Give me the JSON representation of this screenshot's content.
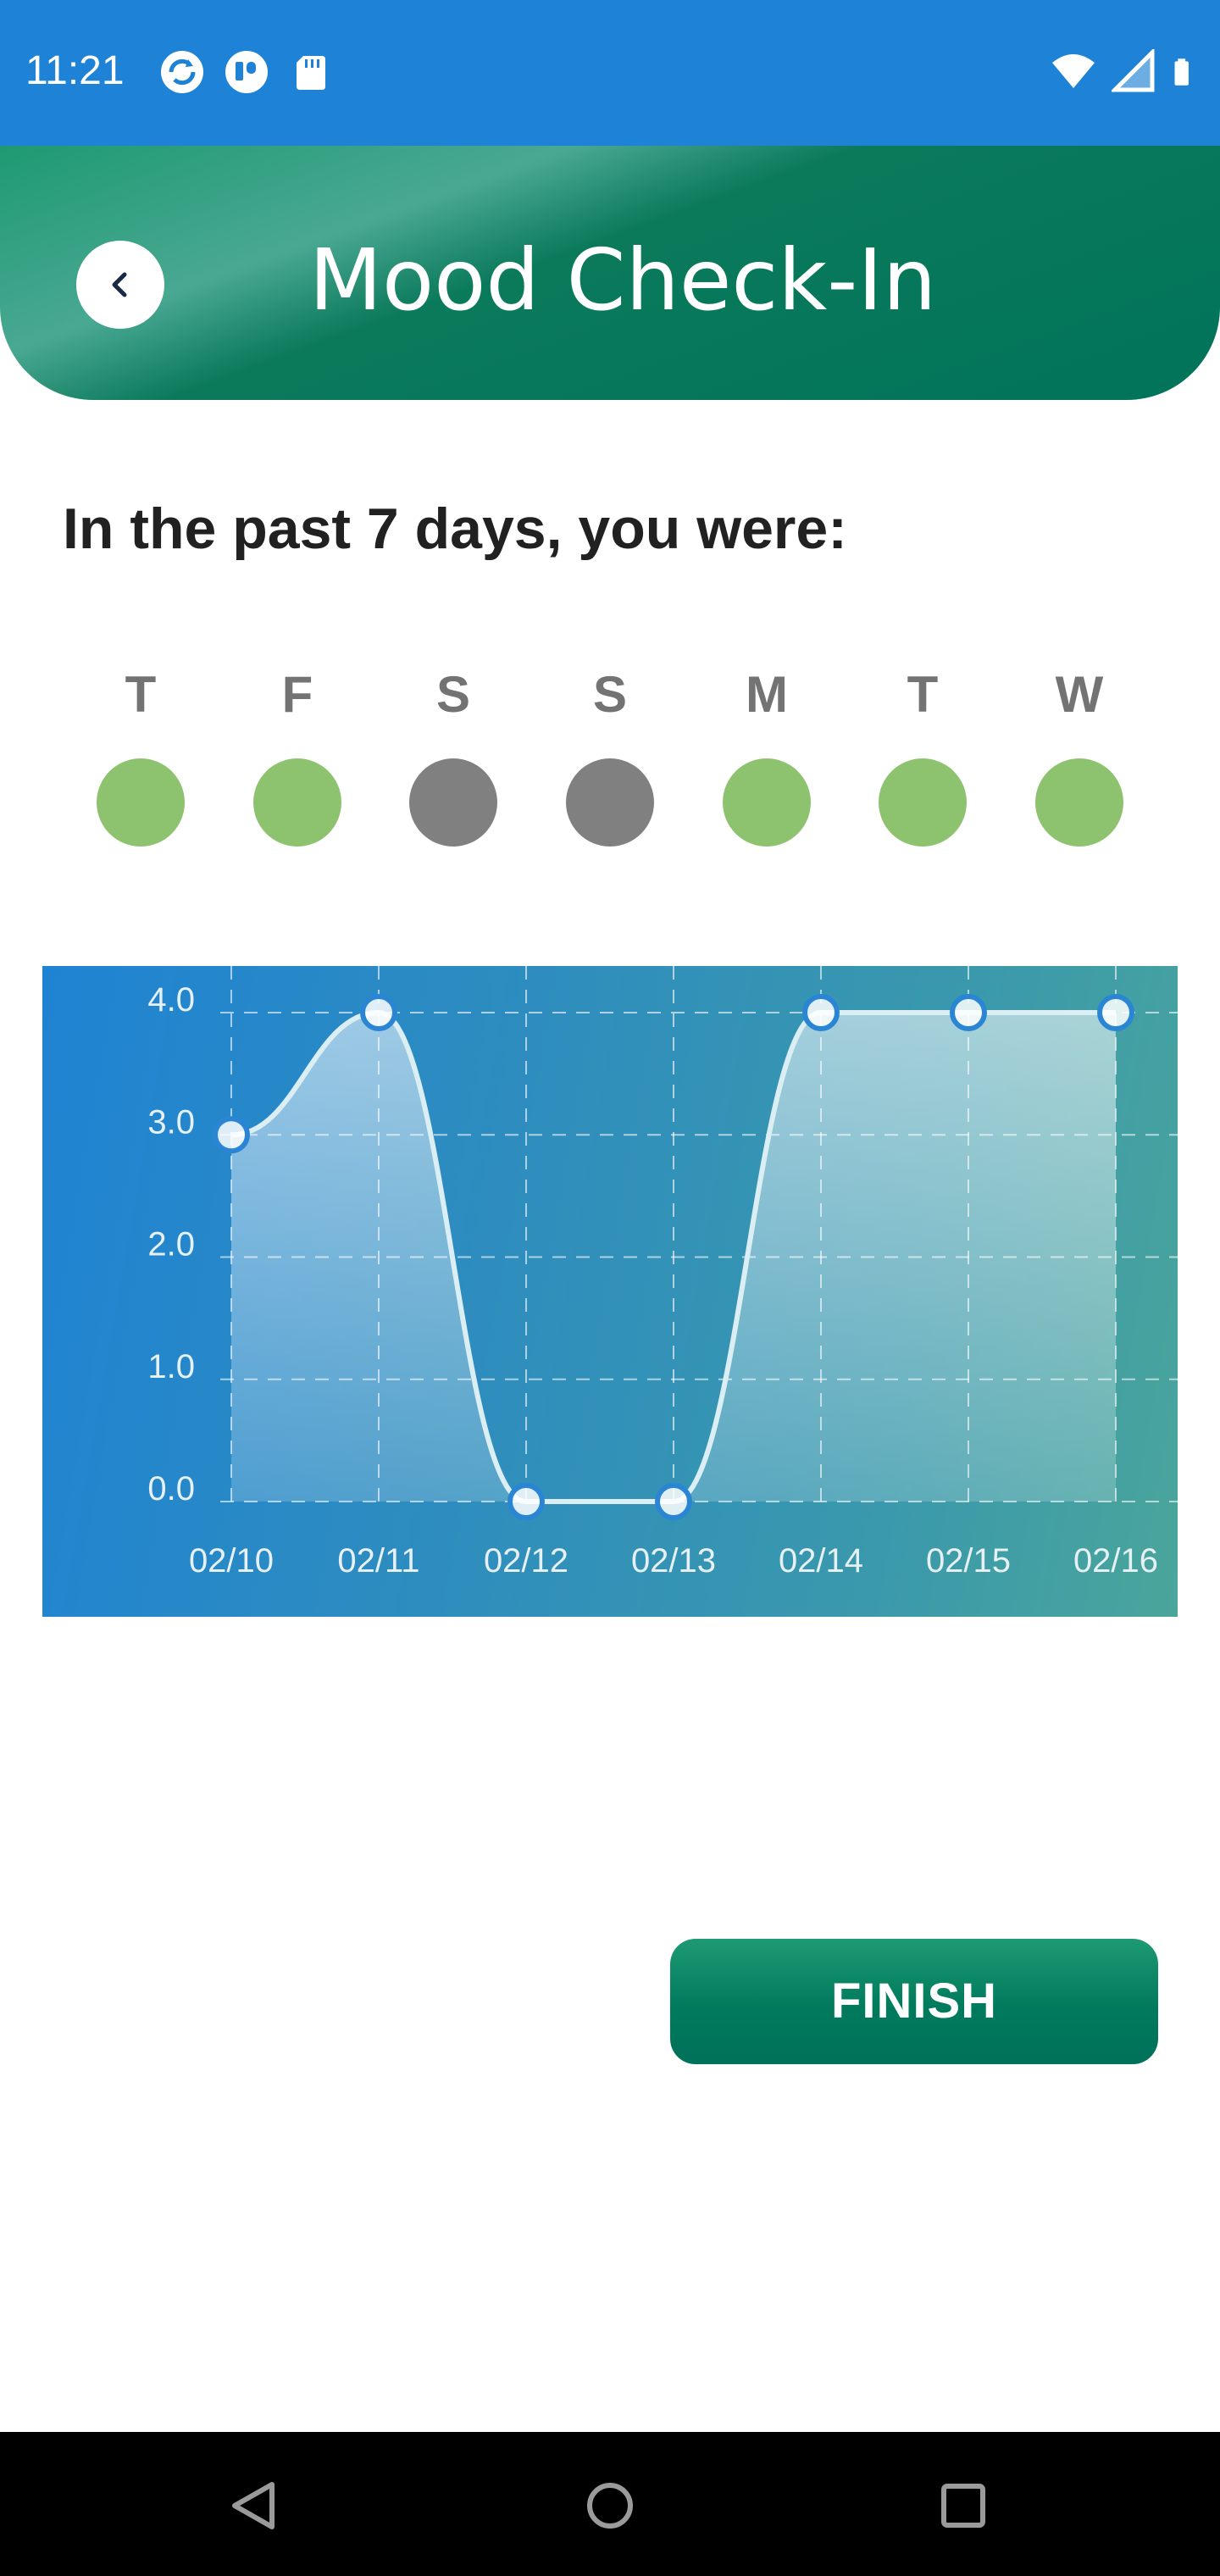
{
  "status_bar": {
    "time": "11:21",
    "left_icons": [
      "sync-icon",
      "pocket-icon",
      "sd-card-icon"
    ],
    "right_icons": [
      "wifi-icon",
      "cell-signal-icon",
      "battery-icon"
    ]
  },
  "header": {
    "title": "Mood Check-In",
    "back_icon": "chevron-left-icon"
  },
  "prompt": "In the past 7 days, you were:",
  "days": [
    {
      "letter": "T",
      "status": "good",
      "color": "#8dc26e"
    },
    {
      "letter": "F",
      "status": "good",
      "color": "#8dc26e"
    },
    {
      "letter": "S",
      "status": "none",
      "color": "#808080"
    },
    {
      "letter": "S",
      "status": "none",
      "color": "#808080"
    },
    {
      "letter": "M",
      "status": "good",
      "color": "#8dc26e"
    },
    {
      "letter": "T",
      "status": "good",
      "color": "#8dc26e"
    },
    {
      "letter": "W",
      "status": "good",
      "color": "#8dc26e"
    }
  ],
  "chart_data": {
    "type": "area",
    "categories": [
      "02/10",
      "02/11",
      "02/12",
      "02/13",
      "02/14",
      "02/15",
      "02/16"
    ],
    "values": [
      3.0,
      4.0,
      0.0,
      0.0,
      4.0,
      4.0,
      4.0
    ],
    "y_ticks": [
      "0.0",
      "1.0",
      "2.0",
      "3.0",
      "4.0"
    ],
    "ylim": [
      0,
      4
    ],
    "grid": true,
    "line_color": "#dbeef3",
    "point_color": "#2a86d4"
  },
  "finish_label": "FINISH",
  "colors": {
    "status_bar": "#1e82d6",
    "header_green": "#00735a",
    "good_dot": "#8dc26e",
    "none_dot": "#808080"
  },
  "nav_bar": {
    "icons": [
      "back-icon",
      "home-icon",
      "recents-icon"
    ]
  }
}
